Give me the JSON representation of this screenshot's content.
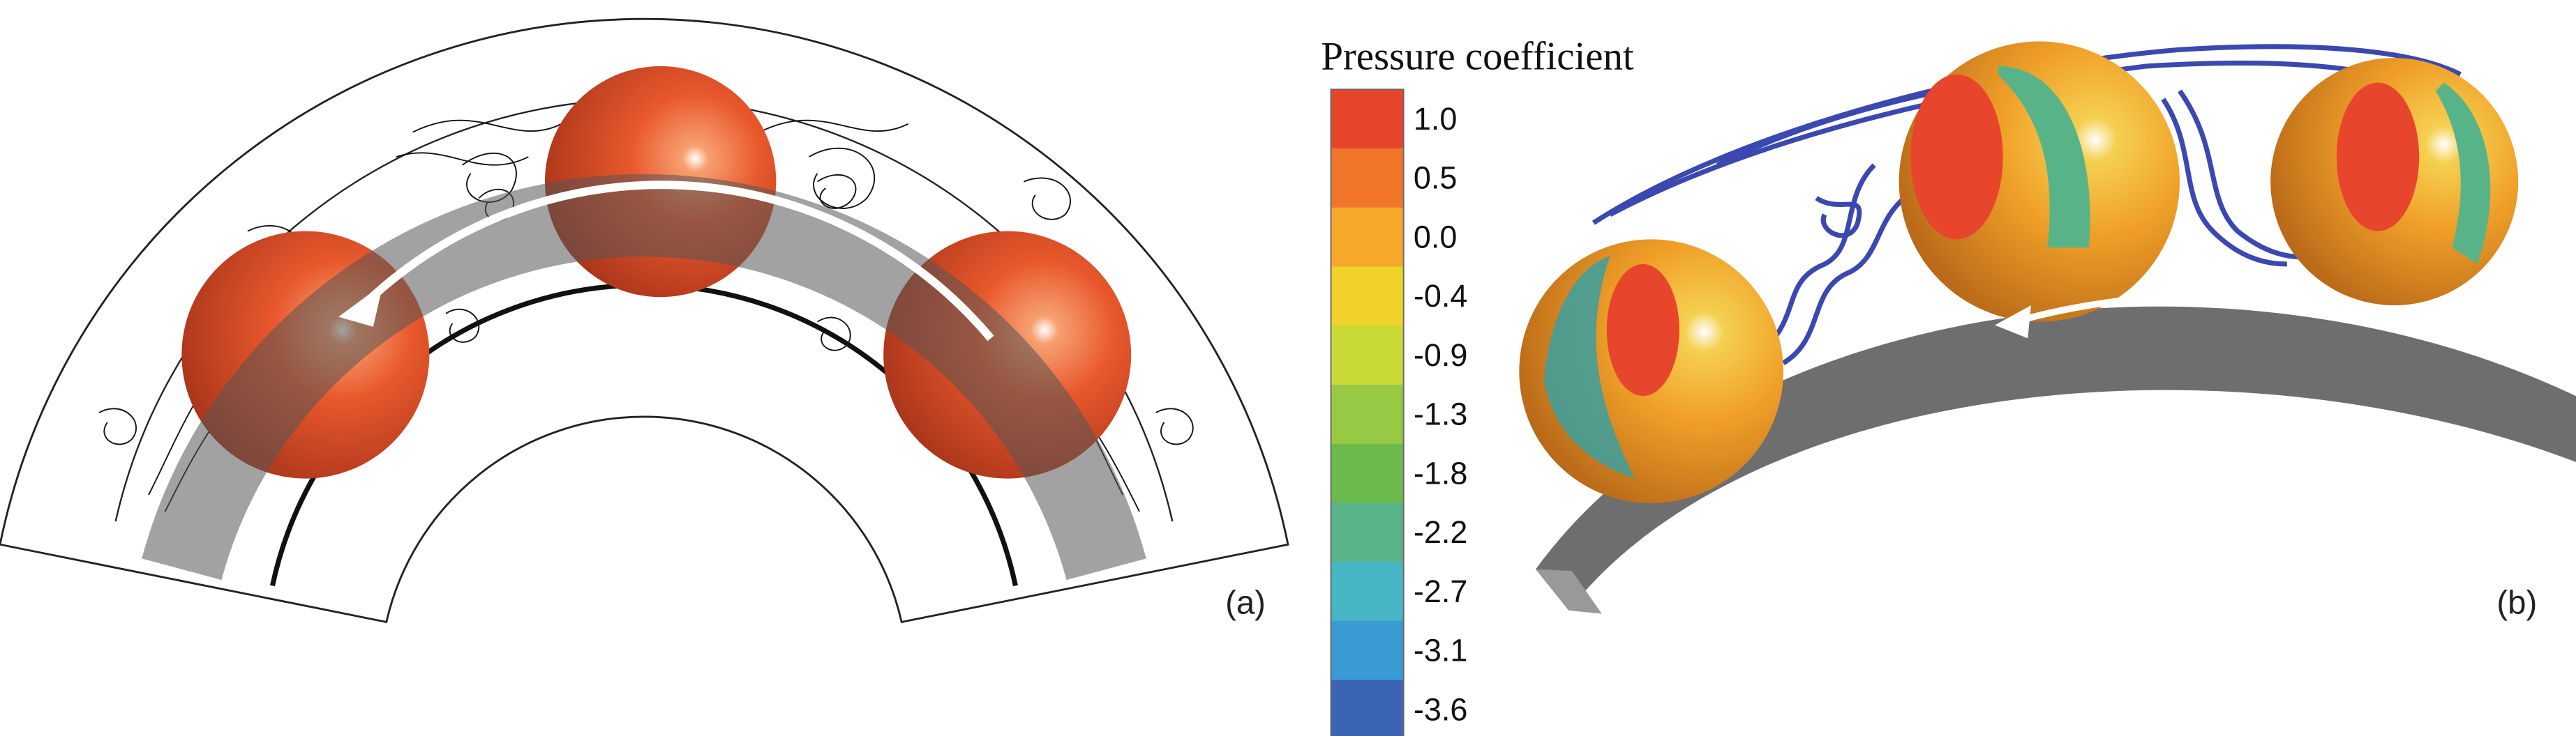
{
  "colorbar": {
    "title": "Pressure coefficient",
    "ticks": [
      "1.0",
      "0.5",
      "0.0",
      "-0.4",
      "-0.9",
      "-1.3",
      "-1.8",
      "-2.2",
      "-2.7",
      "-3.1",
      "-3.6"
    ],
    "colors": [
      "#e8462c",
      "#f2762a",
      "#f6a82a",
      "#f0d22a",
      "#c9d936",
      "#98c945",
      "#6cba4c",
      "#58b488",
      "#46b6c4",
      "#3a9ad4",
      "#3c64b4"
    ]
  },
  "panels": [
    {
      "label": "(a)"
    },
    {
      "label": "(b)"
    }
  ]
}
